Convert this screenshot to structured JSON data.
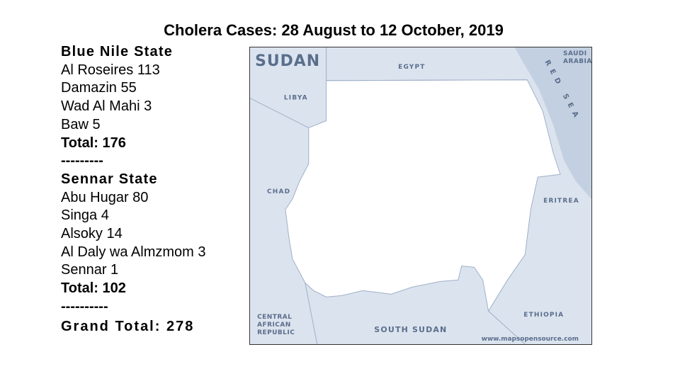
{
  "title": "Cholera Cases: 28 August to 12 October, 2019",
  "sections": [
    {
      "heading": "Blue Nile State",
      "items": [
        "Al Roseires 113",
        "Damazin 55",
        "Wad Al Mahi 3",
        "Baw 5"
      ],
      "total": "Total: 176",
      "separator": "---------"
    },
    {
      "heading": "Sennar State",
      "items": [
        "Abu Hugar 80",
        "Singa 4",
        "Alsoky 14",
        "Al Daly wa Almzmom 3",
        "Sennar 1"
      ],
      "total": "Total: 102",
      "separator": "----------"
    }
  ],
  "grand_total": "Grand Total: 278",
  "map": {
    "title": "SUDAN",
    "labels": [
      "EGYPT",
      "LIBYA",
      "CHAD",
      [
        "CENTRAL",
        "AFRICAN",
        "REPUBLIC"
      ],
      "SOUTH SUDAN",
      "ETHIOPIA",
      "ERITREA",
      [
        "SAUDI",
        "ARABIA"
      ],
      "RED SEA"
    ],
    "credit": "www.mapsopensource.com"
  }
}
